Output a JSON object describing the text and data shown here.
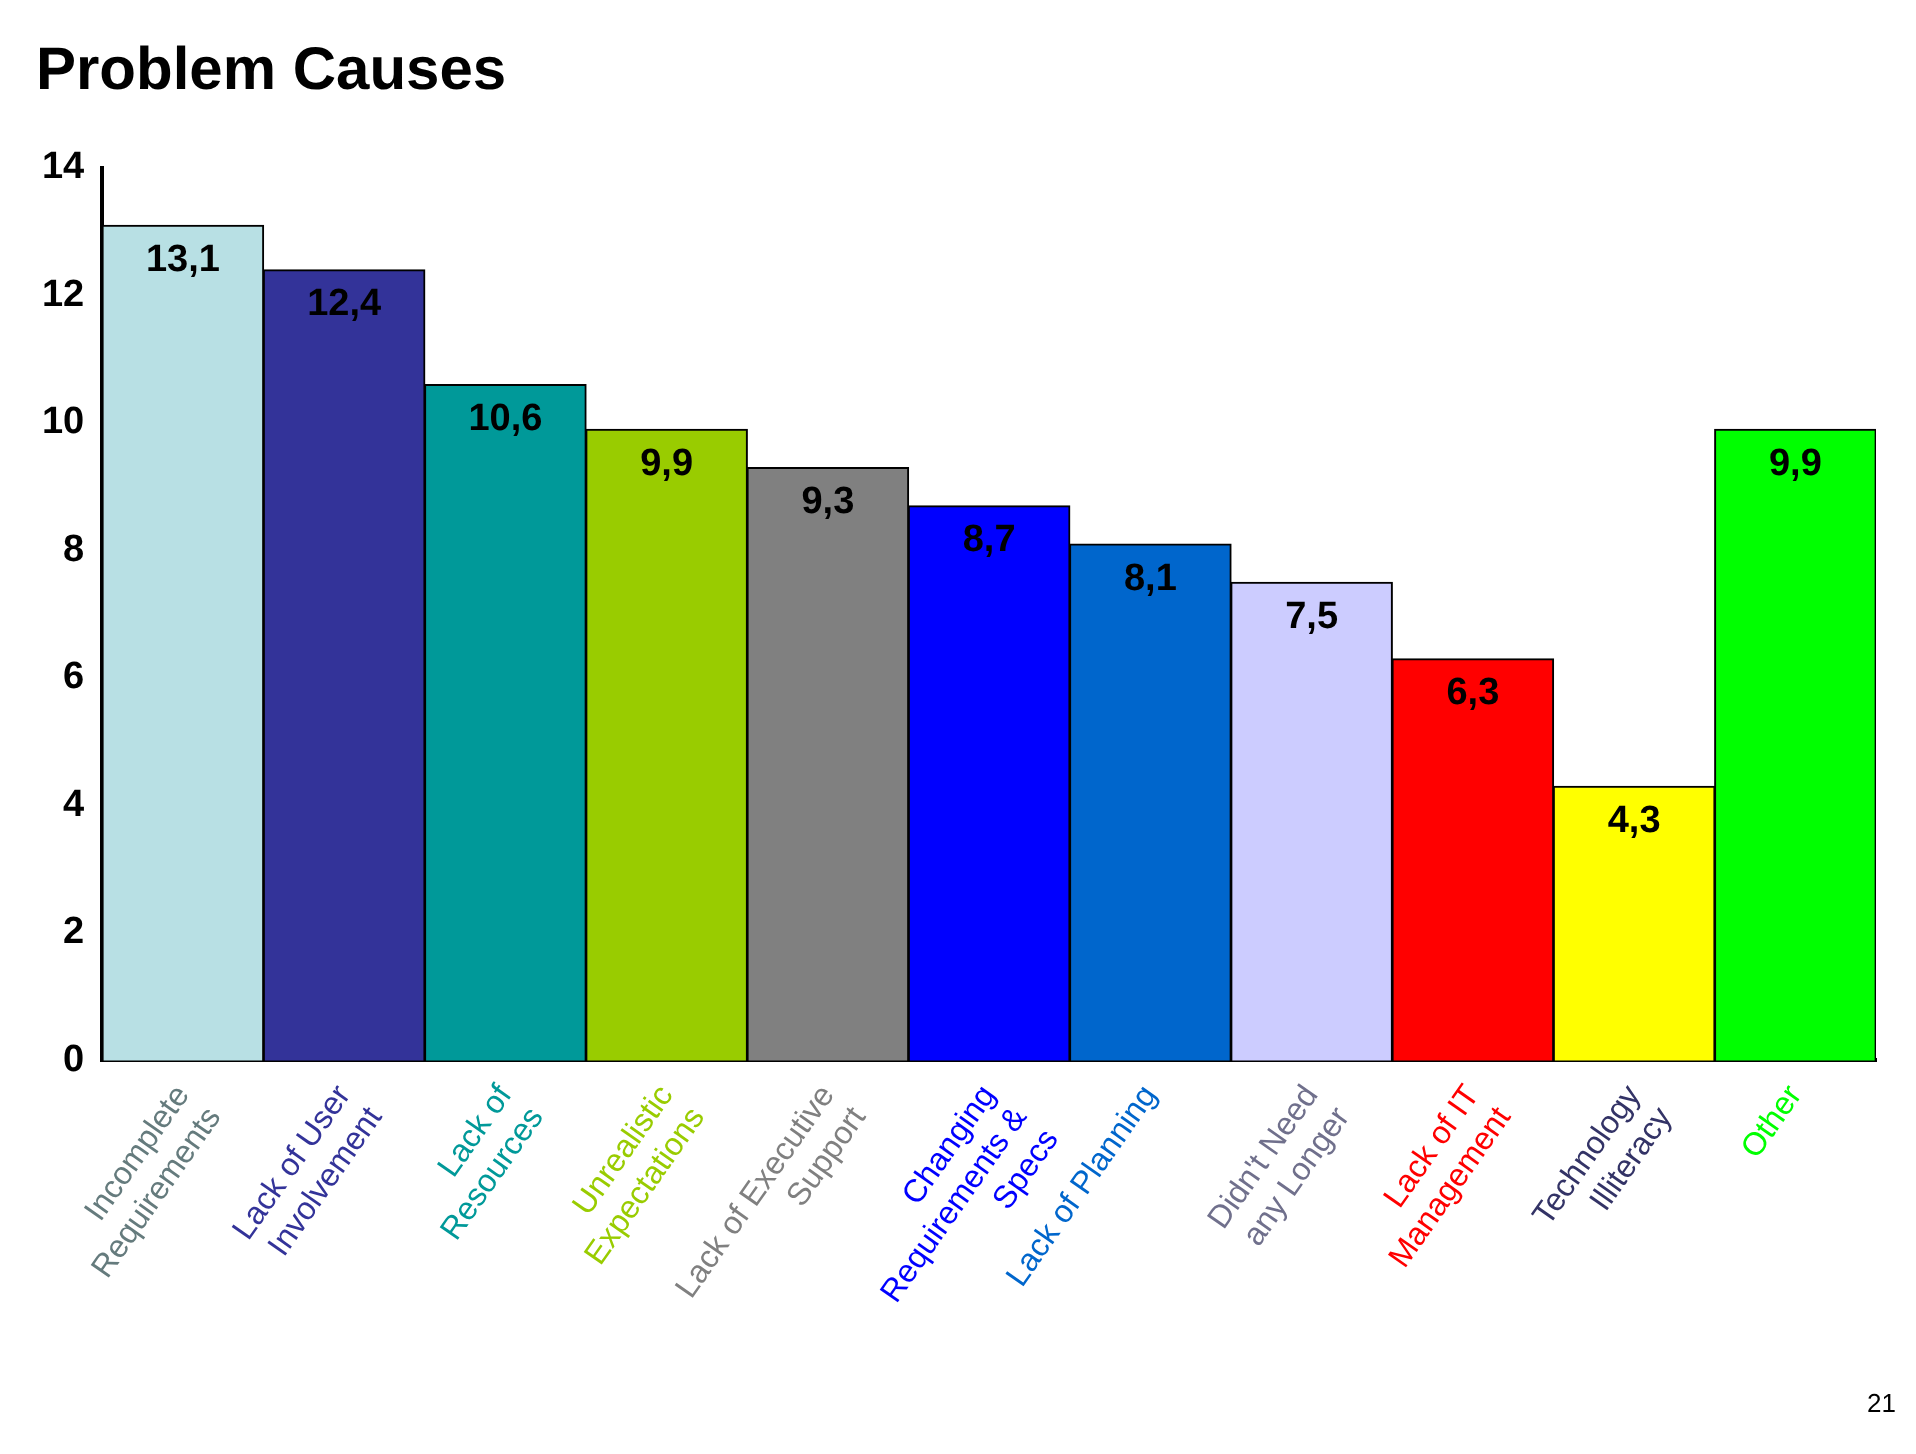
{
  "chart_data": {
    "type": "bar",
    "title": "Problem Causes",
    "categories": [
      "Incomplete\nRequirements",
      "Lack of User\nInvolvement",
      "Lack of\nResources",
      "Unrealistic\nExpectations",
      "Lack of Executive\nSupport",
      "Changing\nRequirements &\nSpecs",
      "Lack of Planning",
      "Didn't Need\nany Longer",
      "Lack of IT\nManagement",
      "Technology\nIlliteracy",
      "Other"
    ],
    "values": [
      13.1,
      12.4,
      10.6,
      9.9,
      9.3,
      8.7,
      8.1,
      7.5,
      6.3,
      4.3,
      9.9
    ],
    "value_labels": [
      "13,1",
      "12,4",
      "10,6",
      "9,9",
      "9,3",
      "8,7",
      "8,1",
      "7,5",
      "6,3",
      "4,3",
      "9,9"
    ],
    "colors": [
      "#b8e0e4",
      "#333399",
      "#009999",
      "#99cc00",
      "#808080",
      "#0000ff",
      "#0066cc",
      "#ccccff",
      "#ff0000",
      "#ffff00",
      "#00ff00"
    ],
    "ylim": [
      0,
      14
    ],
    "yticks": [
      0,
      2,
      4,
      6,
      8,
      10,
      12,
      14
    ],
    "grid": false,
    "legend": false,
    "annotations": [
      "21"
    ]
  }
}
